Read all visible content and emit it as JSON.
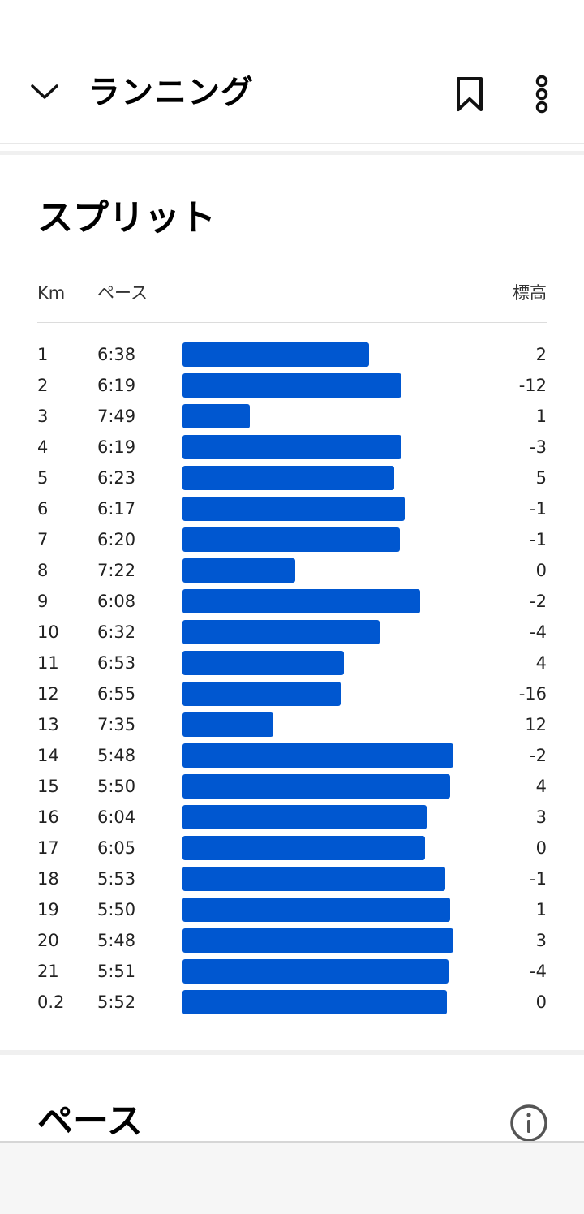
{
  "header": {
    "title": "ランニング",
    "back_icon": "chevron-down-icon",
    "bookmark_icon": "bookmark-icon",
    "more_icon": "more-vertical-icon"
  },
  "splits": {
    "title": "スプリット",
    "columns": {
      "km": "Km",
      "pace": "ペース",
      "elevation": "標高"
    },
    "bar_color": "#0057D0",
    "rows": [
      {
        "km": "1",
        "pace": "6:38",
        "elevation": "2"
      },
      {
        "km": "2",
        "pace": "6:19",
        "elevation": "-12"
      },
      {
        "km": "3",
        "pace": "7:49",
        "elevation": "1"
      },
      {
        "km": "4",
        "pace": "6:19",
        "elevation": "-3"
      },
      {
        "km": "5",
        "pace": "6:23",
        "elevation": "5"
      },
      {
        "km": "6",
        "pace": "6:17",
        "elevation": "-1"
      },
      {
        "km": "7",
        "pace": "6:20",
        "elevation": "-1"
      },
      {
        "km": "8",
        "pace": "7:22",
        "elevation": "0"
      },
      {
        "km": "9",
        "pace": "6:08",
        "elevation": "-2"
      },
      {
        "km": "10",
        "pace": "6:32",
        "elevation": "-4"
      },
      {
        "km": "11",
        "pace": "6:53",
        "elevation": "4"
      },
      {
        "km": "12",
        "pace": "6:55",
        "elevation": "-16"
      },
      {
        "km": "13",
        "pace": "7:35",
        "elevation": "12"
      },
      {
        "km": "14",
        "pace": "5:48",
        "elevation": "-2"
      },
      {
        "km": "15",
        "pace": "5:50",
        "elevation": "4"
      },
      {
        "km": "16",
        "pace": "6:04",
        "elevation": "3"
      },
      {
        "km": "17",
        "pace": "6:05",
        "elevation": "0"
      },
      {
        "km": "18",
        "pace": "5:53",
        "elevation": "-1"
      },
      {
        "km": "19",
        "pace": "5:50",
        "elevation": "1"
      },
      {
        "km": "20",
        "pace": "5:48",
        "elevation": "3"
      },
      {
        "km": "21",
        "pace": "5:51",
        "elevation": "-4"
      },
      {
        "km": "0.2",
        "pace": "5:52",
        "elevation": "0"
      }
    ]
  },
  "pace_section": {
    "title": "ペース",
    "info_icon": "info-icon"
  }
}
